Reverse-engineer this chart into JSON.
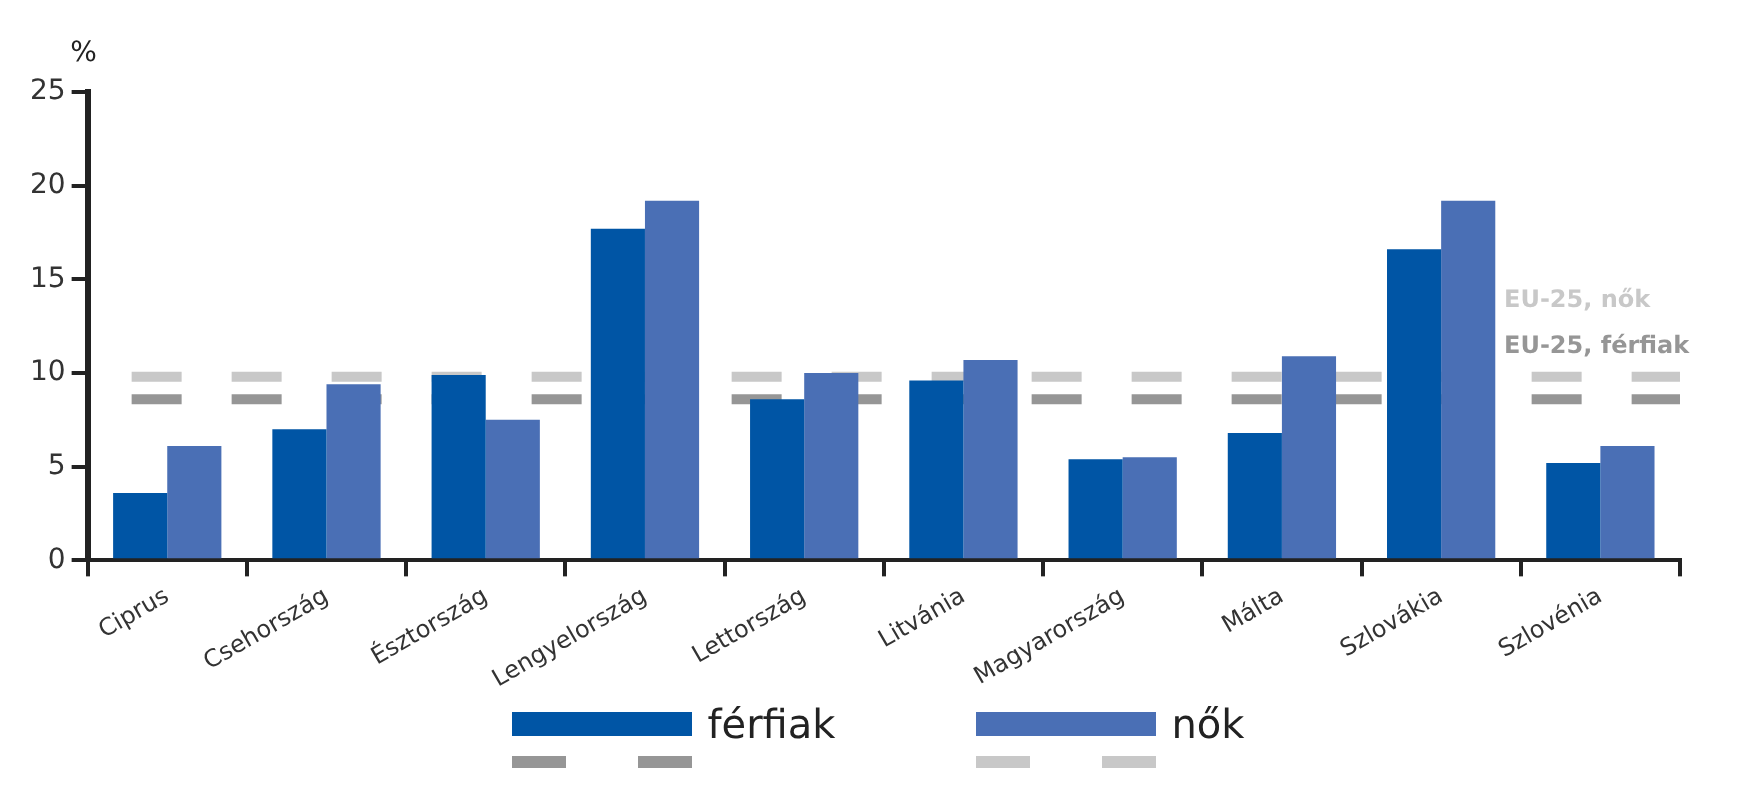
{
  "chart_data": {
    "type": "bar",
    "ylabel": "%",
    "categories": [
      "Ciprus",
      "Csehország",
      "Észtország",
      "Lengyelország",
      "Lettország",
      "Litvánia",
      "Magyarország",
      "Málta",
      "Szlovákia",
      "Szlovénia"
    ],
    "series": [
      {
        "name": "férfiak",
        "color": "#0055a5",
        "values": [
          3.6,
          7.0,
          9.9,
          17.7,
          8.6,
          9.6,
          5.4,
          6.8,
          16.6,
          5.2
        ]
      },
      {
        "name": "nők",
        "color": "#4a6fb5",
        "values": [
          6.1,
          9.4,
          7.5,
          19.2,
          10.0,
          10.7,
          5.5,
          10.9,
          19.2,
          6.1
        ]
      }
    ],
    "ylim": [
      0,
      25
    ],
    "yticks": [
      0,
      5,
      10,
      15,
      20,
      25
    ],
    "ref_lines": [
      {
        "axis": "y",
        "value": 9.8,
        "label": "EU-25, nők",
        "color": "#c8c8c8",
        "line_style": "dashed"
      },
      {
        "axis": "y",
        "value": 8.6,
        "label": "EU-25, férfiak",
        "color": "#969696",
        "line_style": "dashed"
      }
    ],
    "legend": "bottom"
  }
}
